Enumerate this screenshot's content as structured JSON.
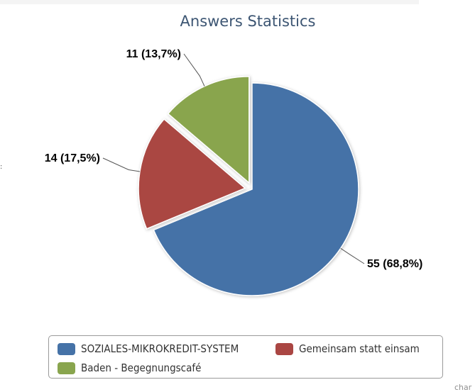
{
  "chart_data": {
    "type": "pie",
    "title": "Answers Statistics",
    "slices": [
      {
        "name": "SOZIALES-MIKROKREDIT-SYSTEM",
        "value": 55,
        "label": "55 (68,8%)",
        "color": "#4572a7",
        "sliced": false
      },
      {
        "name": "Gemeinsam statt einsam",
        "value": 14,
        "label": "14 (17,5%)",
        "color": "#aa4643",
        "sliced": true
      },
      {
        "name": "Baden - Begegnungscafé",
        "value": 11,
        "label": "11 (13,7%)",
        "color": "#89a54e",
        "sliced": true
      }
    ],
    "legend_position": "bottom",
    "credits": "char"
  },
  "edge_mark": ":"
}
